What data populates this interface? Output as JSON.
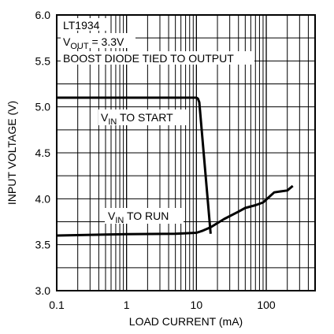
{
  "chart_data": {
    "type": "line",
    "title": "",
    "xlabel": "LOAD CURRENT (mA)",
    "ylabel": "INPUT VOLTAGE (V)",
    "x_scale": "log",
    "xlim": [
      0.1,
      500
    ],
    "ylim": [
      3.0,
      6.0
    ],
    "grid": true,
    "x_tick_labels": [
      "0.1",
      "1",
      "10",
      "100"
    ],
    "x_tick_values": [
      0.1,
      1,
      10,
      100
    ],
    "y_tick_labels": [
      "3.0",
      "3.5",
      "4.0",
      "4.5",
      "5.0",
      "5.5",
      "6.0"
    ],
    "y_tick_values": [
      3.0,
      3.5,
      4.0,
      4.5,
      5.0,
      5.5,
      6.0
    ],
    "annotations": {
      "part": "LT1934",
      "vout_main": "V",
      "vout_sub": "OUT",
      "vout_rest": " = 3.3V",
      "diode": "BOOST DIODE TIED TO OUTPUT"
    },
    "series": [
      {
        "label_main": "V",
        "label_sub": "IN",
        "label_rest": " TO START",
        "x": [
          0.1,
          1,
          5,
          10,
          10.5,
          11,
          16
        ],
        "y": [
          5.1,
          5.1,
          5.1,
          5.1,
          5.09,
          5.05,
          3.62
        ]
      },
      {
        "label_main": "V",
        "label_sub": "IN",
        "label_rest": " TO RUN",
        "x": [
          0.1,
          0.5,
          1,
          5,
          10,
          12,
          16,
          25,
          40,
          50,
          70,
          90,
          110,
          130,
          160,
          200,
          240
        ],
        "y": [
          3.6,
          3.61,
          3.615,
          3.62,
          3.63,
          3.65,
          3.69,
          3.78,
          3.86,
          3.9,
          3.93,
          3.96,
          4.02,
          4.07,
          4.08,
          4.09,
          4.14
        ]
      }
    ]
  }
}
